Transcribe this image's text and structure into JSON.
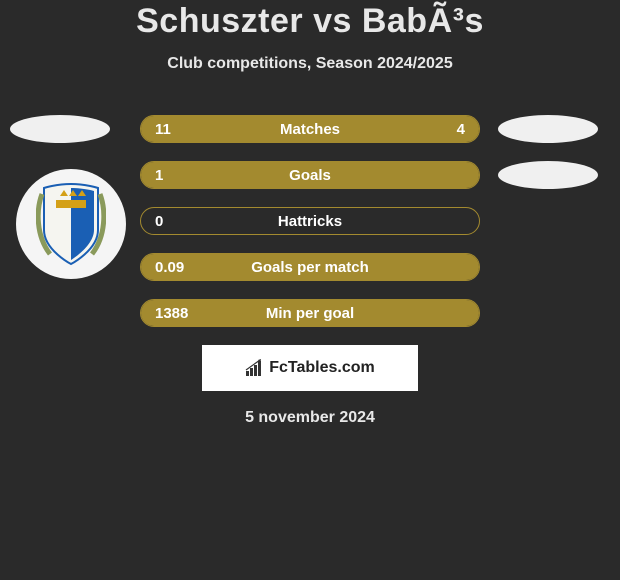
{
  "title": "Schuszter vs BabÃ³s",
  "subtitle": "Club competitions, Season 2024/2025",
  "date": "5 november 2024",
  "logo_text": "FcTables.com",
  "accent_color": "#a38a2f",
  "bg_color": "#2a2a2a",
  "stats": [
    {
      "label": "Matches",
      "left_val": "11",
      "right_val": "4",
      "left_pct": 73,
      "right_pct": 27,
      "show_right_oval": true
    },
    {
      "label": "Goals",
      "left_val": "1",
      "right_val": "",
      "left_pct": 100,
      "right_pct": 0,
      "show_right_oval": true
    },
    {
      "label": "Hattricks",
      "left_val": "0",
      "right_val": "",
      "left_pct": 0,
      "right_pct": 0,
      "show_right_oval": false
    },
    {
      "label": "Goals per match",
      "left_val": "0.09",
      "right_val": "",
      "left_pct": 100,
      "right_pct": 0,
      "show_right_oval": false
    },
    {
      "label": "Min per goal",
      "left_val": "1388",
      "right_val": "",
      "left_pct": 100,
      "right_pct": 0,
      "show_right_oval": false
    }
  ],
  "crest_colors": {
    "shield_blue": "#1a5fb4",
    "shield_gold": "#d4a017",
    "wreath": "#8a9a5b"
  }
}
